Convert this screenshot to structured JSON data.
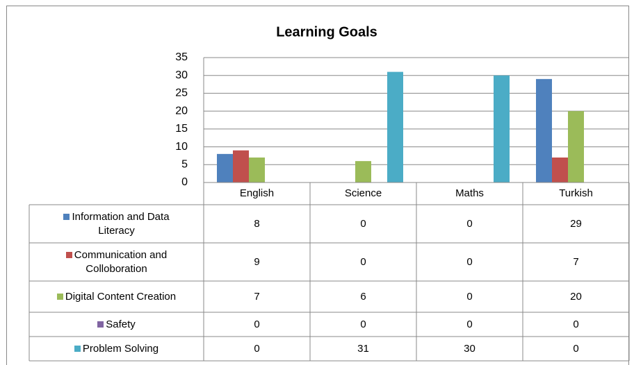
{
  "chart_data": {
    "type": "bar",
    "title": "Learning Goals",
    "categories": [
      "English",
      "Science",
      "Maths",
      "Turkish"
    ],
    "series": [
      {
        "name": "Information and Data Literacy",
        "color": "#4f81bd",
        "values": [
          8,
          0,
          0,
          29
        ]
      },
      {
        "name": "Communication and Colloboration",
        "color": "#c0504d",
        "values": [
          9,
          0,
          0,
          7
        ]
      },
      {
        "name": "Digital Content Creation",
        "color": "#9bbb59",
        "values": [
          7,
          6,
          0,
          20
        ]
      },
      {
        "name": "Safety",
        "color": "#8064a2",
        "values": [
          0,
          0,
          0,
          0
        ]
      },
      {
        "name": "Problem Solving",
        "color": "#4bacc6",
        "values": [
          0,
          31,
          30,
          0
        ]
      }
    ],
    "ylim": [
      0,
      35
    ],
    "yticks": [
      0,
      5,
      10,
      15,
      20,
      25,
      30,
      35
    ],
    "grid": true
  }
}
